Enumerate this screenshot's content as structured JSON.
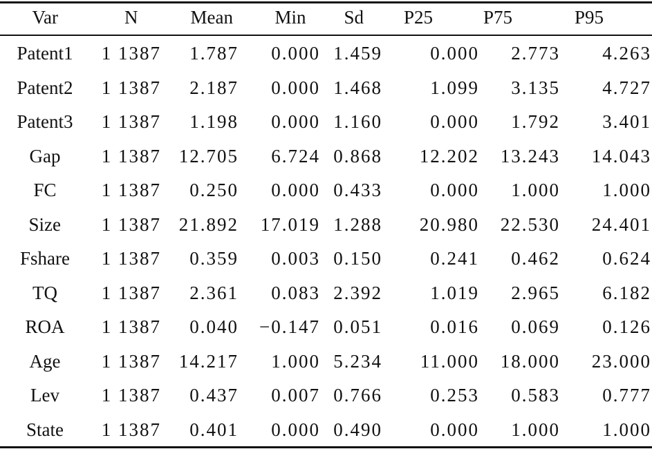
{
  "table": {
    "header": [
      "Var",
      "N",
      "Mean",
      "Min",
      "Sd",
      "P25",
      "P75",
      "P95"
    ],
    "rows": [
      [
        "Patent1",
        "1 1387",
        "1.787",
        "0.000",
        "1.459",
        "0.000",
        "2.773",
        "4.263"
      ],
      [
        "Patent2",
        "1 1387",
        "2.187",
        "0.000",
        "1.468",
        "1.099",
        "3.135",
        "4.727"
      ],
      [
        "Patent3",
        "1 1387",
        "1.198",
        "0.000",
        "1.160",
        "0.000",
        "1.792",
        "3.401"
      ],
      [
        "Gap",
        "1 1387",
        "12.705",
        "6.724",
        "0.868",
        "12.202",
        "13.243",
        "14.043"
      ],
      [
        "FC",
        "1 1387",
        "0.250",
        "0.000",
        "0.433",
        "0.000",
        "1.000",
        "1.000"
      ],
      [
        "Size",
        "1 1387",
        "21.892",
        "17.019",
        "1.288",
        "20.980",
        "22.530",
        "24.401"
      ],
      [
        "Fshare",
        "1 1387",
        "0.359",
        "0.003",
        "0.150",
        "0.241",
        "0.462",
        "0.624"
      ],
      [
        "TQ",
        "1 1387",
        "2.361",
        "0.083",
        "2.392",
        "1.019",
        "2.965",
        "6.182"
      ],
      [
        "ROA",
        "1 1387",
        "0.040",
        "−0.147",
        "0.051",
        "0.016",
        "0.069",
        "0.126"
      ],
      [
        "Age",
        "1 1387",
        "14.217",
        "1.000",
        "5.234",
        "11.000",
        "18.000",
        "23.000"
      ],
      [
        "Lev",
        "1 1387",
        "0.437",
        "0.007",
        "0.766",
        "0.253",
        "0.583",
        "0.777"
      ],
      [
        "State",
        "1 1387",
        "0.401",
        "0.000",
        "0.490",
        "0.000",
        "1.000",
        "1.000"
      ]
    ]
  }
}
